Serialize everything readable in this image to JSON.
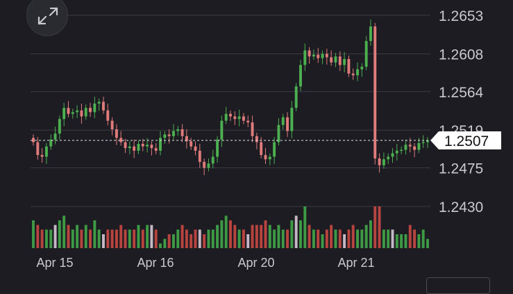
{
  "chart_data": {
    "type": "candlestick",
    "price_axis": {
      "ticks": [
        "1.2653",
        "1.2608",
        "1.2564",
        "1.2519",
        "1.2475",
        "1.2430"
      ],
      "values": [
        1.2653,
        1.2608,
        1.2564,
        1.2519,
        1.2475,
        1.243
      ]
    },
    "x_axis": {
      "labels": [
        "Apr 15",
        "Apr 16",
        "Apr 20",
        "Apr 21"
      ]
    },
    "current_price": {
      "label": "1.2507",
      "value": 1.2507
    },
    "colors": {
      "up": "#4caf50",
      "down": "#e07b7b",
      "grid": "#3a3a42",
      "axis_text": "#c9c9cf",
      "price_label_bg": "#ffffff",
      "price_label_text": "#111111",
      "volume_up": "#3e9a45",
      "volume_down": "#b8443f",
      "volume_neutral": "#c6b7c4"
    },
    "grid": true,
    "closes": [
      1.2505,
      1.249,
      1.2488,
      1.25,
      1.2508,
      1.2515,
      1.2532,
      1.2545,
      1.2538,
      1.254,
      1.2542,
      1.2535,
      1.2545,
      1.254,
      1.255,
      1.2552,
      1.2542,
      1.253,
      1.252,
      1.251,
      1.2505,
      1.2498,
      1.25,
      1.2495,
      1.2503,
      1.25,
      1.2502,
      1.2498,
      1.2495,
      1.251,
      1.2514,
      1.2512,
      1.2518,
      1.252,
      1.2512,
      1.2506,
      1.25,
      1.2495,
      1.2482,
      1.2475,
      1.248,
      1.2488,
      1.2508,
      1.253,
      1.2538,
      1.2535,
      1.2532,
      1.2535,
      1.253,
      1.2528,
      1.2512,
      1.2505,
      1.249,
      1.2485,
      1.2488,
      1.2505,
      1.2525,
      1.2534,
      1.2518,
      1.2545,
      1.257,
      1.2595,
      1.2612,
      1.2605,
      1.2607,
      1.2603,
      1.2608,
      1.2604,
      1.2598,
      1.2605,
      1.2595,
      1.2602,
      1.2585,
      1.2583,
      1.259,
      1.2593,
      1.2623,
      1.264,
      1.2486,
      1.2478,
      1.2485,
      1.2488,
      1.2492,
      1.2495,
      1.2496,
      1.2502,
      1.25,
      1.2496,
      1.2504,
      1.2505,
      1.2507
    ],
    "volumes": [
      6,
      5,
      4,
      4,
      4,
      5,
      6,
      7,
      5,
      4,
      5,
      4,
      5,
      4,
      6,
      4,
      3,
      4,
      4,
      4,
      5,
      4,
      4,
      4,
      5,
      4,
      5,
      5,
      4,
      1,
      2,
      3,
      3,
      4,
      5,
      4,
      3,
      4,
      4,
      3,
      4,
      4,
      5,
      6,
      7,
      6,
      5,
      4,
      4,
      3,
      5,
      5,
      5,
      6,
      5,
      4,
      5,
      4,
      4,
      6,
      7,
      6,
      9,
      5,
      4,
      4,
      3,
      4,
      5,
      4,
      4,
      3,
      4,
      5,
      4,
      4,
      5,
      6,
      9,
      9,
      4,
      4,
      4,
      3,
      3,
      3,
      5,
      4,
      3,
      4,
      2
    ]
  },
  "icons": {
    "expand": "expand-arrows-icon"
  }
}
